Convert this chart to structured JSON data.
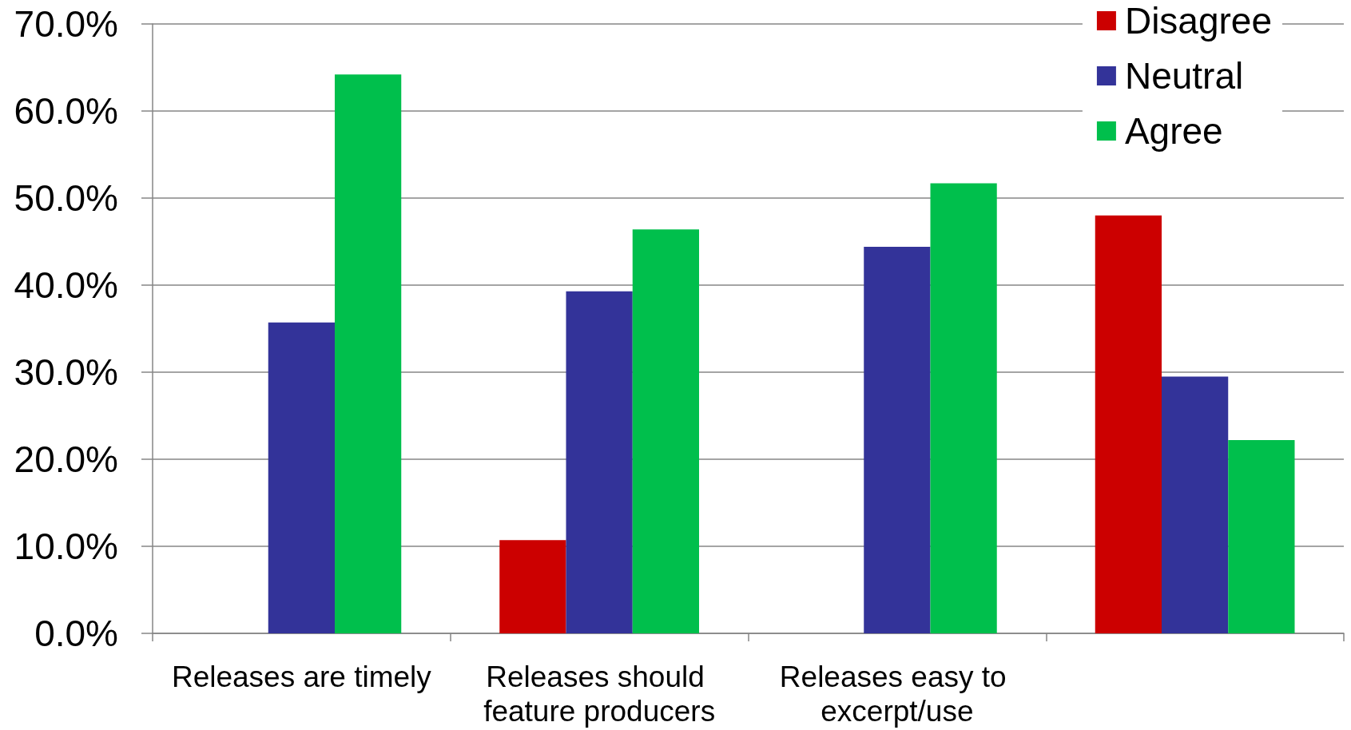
{
  "chart_data": {
    "type": "bar",
    "categories": [
      "Releases are timely",
      "Releases should feature producers",
      "Releases easy to excerpt/use",
      null
    ],
    "series": [
      {
        "name": "Disagree",
        "color": "#cc0000",
        "values": [
          null,
          10.7,
          null,
          48.0
        ]
      },
      {
        "name": "Neutral",
        "color": "#333399",
        "values": [
          35.7,
          39.3,
          44.4,
          29.5
        ]
      },
      {
        "name": "Agree",
        "color": "#00bf4c",
        "values": [
          64.2,
          46.4,
          51.7,
          22.2
        ]
      }
    ],
    "ylim": [
      0,
      70
    ],
    "yticks": [
      {
        "value": 0,
        "label": "0.0%"
      },
      {
        "value": 10,
        "label": "10.0%"
      },
      {
        "value": 20,
        "label": "20.0%"
      },
      {
        "value": 30,
        "label": "30.0%"
      },
      {
        "value": 40,
        "label": "40.0%"
      },
      {
        "value": 50,
        "label": "50.0%"
      },
      {
        "value": 60,
        "label": "60.0%"
      },
      {
        "value": 70,
        "label": "70.0%"
      }
    ],
    "grid": true,
    "legend": "top right"
  }
}
